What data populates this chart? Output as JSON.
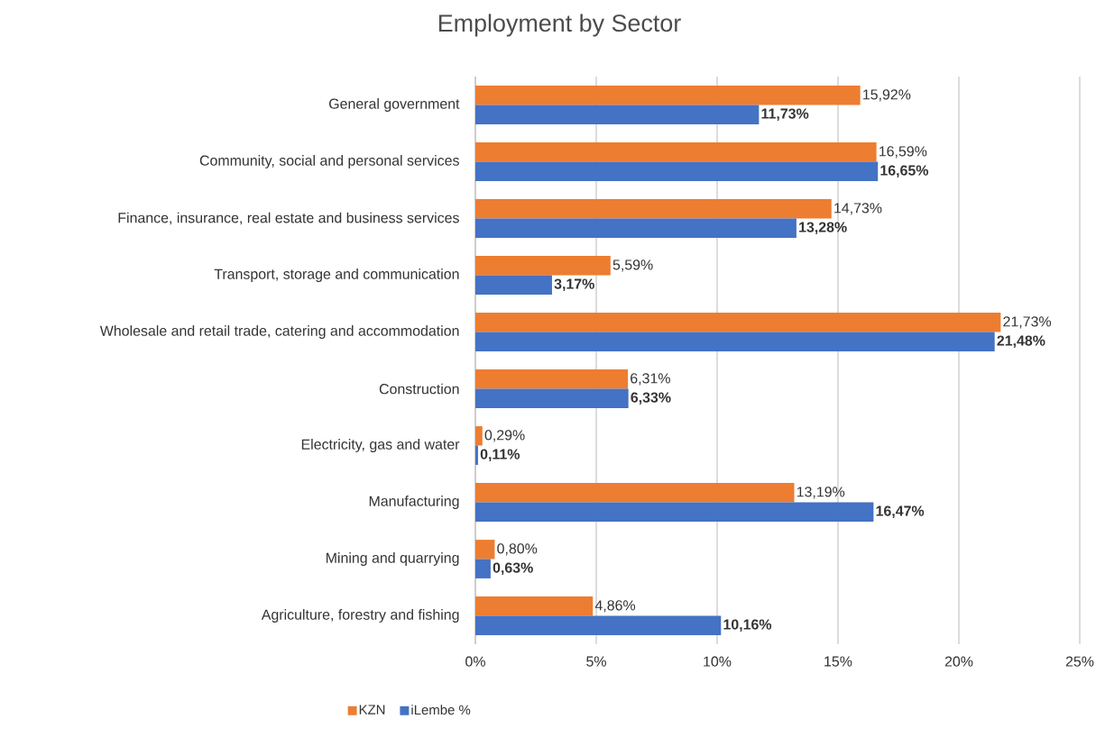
{
  "chart_data": {
    "type": "bar",
    "orientation": "horizontal",
    "title": "Employment by Sector",
    "categories": [
      "General government",
      "Community, social and personal services",
      "Finance, insurance, real estate and business services",
      "Transport, storage and communication",
      "Wholesale and retail trade, catering and accommodation",
      "Construction",
      "Electricity, gas and water",
      "Manufacturing",
      "Mining and quarrying",
      "Agriculture, forestry and fishing"
    ],
    "series": [
      {
        "name": "KZN",
        "color": "#ed7d31",
        "values": [
          15.92,
          16.59,
          14.73,
          5.59,
          21.73,
          6.31,
          0.29,
          13.19,
          0.8,
          4.86
        ],
        "value_labels": [
          "15,92%",
          "16,59%",
          "14,73%",
          "5,59%",
          "21,73%",
          "6,31%",
          "0,29%",
          "13,19%",
          "0,80%",
          "4,86%"
        ]
      },
      {
        "name": "iLembe %",
        "color": "#4472c4",
        "values": [
          11.73,
          16.65,
          13.28,
          3.17,
          21.48,
          6.33,
          0.11,
          16.47,
          0.63,
          10.16
        ],
        "value_labels": [
          "11,73%",
          "16,65%",
          "13,28%",
          "3,17%",
          "21,48%",
          "6,33%",
          "0,11%",
          "16,47%",
          "0,63%",
          "10,16%"
        ]
      }
    ],
    "xlim": [
      0,
      25
    ],
    "xticks": [
      {
        "value": 0,
        "label": "0%"
      },
      {
        "value": 5,
        "label": "5%"
      },
      {
        "value": 10,
        "label": "10%"
      },
      {
        "value": 15,
        "label": "15%"
      },
      {
        "value": 20,
        "label": "20%"
      },
      {
        "value": 25,
        "label": "25%"
      }
    ],
    "grid": "x",
    "legend": "bottom"
  }
}
